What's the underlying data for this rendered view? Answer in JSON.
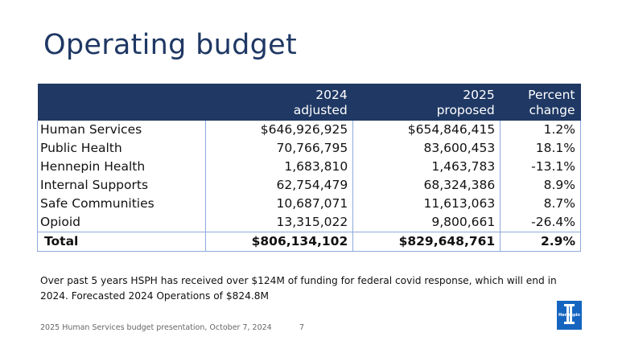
{
  "title": "Operating budget",
  "table": {
    "header": [
      [
        "2024",
        "adjusted"
      ],
      [
        "2025",
        "proposed"
      ],
      [
        "Percent",
        "change"
      ]
    ],
    "rows": [
      [
        "Human Services",
        "$646,926,925",
        "$654,846,415",
        "1.2%"
      ],
      [
        "Public Health",
        "70,766,795",
        "83,600,453",
        "18.1%"
      ],
      [
        "Hennepin Health",
        "1,683,810",
        "1,463,783",
        "-13.1%"
      ],
      [
        "Internal Supports",
        "62,754,479",
        "68,324,386",
        "8.9%"
      ],
      [
        "Safe Communities",
        "10,687,071",
        "11,613,063",
        "8.7%"
      ],
      [
        "Opioid",
        "13,315,022",
        "9,800,661",
        "-26.4%"
      ]
    ],
    "total": [
      "Total",
      "$806,134,102",
      "$829,648,761",
      "2.9%"
    ]
  },
  "note": [
    "Over past 5 years HSPH has received over $124M of funding for federal covid response, which will end in",
    "2024.  Forecasted 2024 Operations of $824.8M"
  ],
  "footer": "2025 Human Services budget presentation, October 7, 2024",
  "page_number": "7",
  "logo": "Hennepin"
}
